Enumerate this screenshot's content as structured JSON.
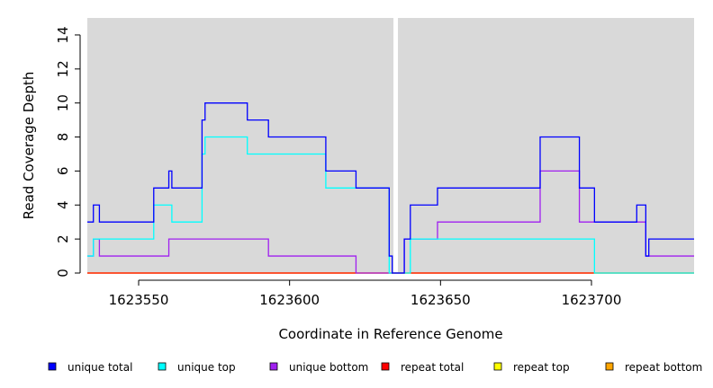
{
  "chart_data": {
    "type": "line",
    "step": true,
    "xlabel": "Coordinate in Reference Genome",
    "ylabel": "Read Coverage Depth",
    "xlim": [
      1623533,
      1623734
    ],
    "ylim": [
      0,
      15
    ],
    "x_ticks": [
      1623550,
      1623600,
      1623650,
      1623700
    ],
    "y_ticks": [
      0,
      2,
      4,
      6,
      8,
      10,
      12,
      14
    ],
    "gap_x": 1623635,
    "grid": false,
    "background_color": "#d9d9d9",
    "legend_position": "bottom",
    "series": [
      {
        "name": "unique total",
        "color": "#0000ff",
        "points": [
          [
            1623533,
            3
          ],
          [
            1623535,
            4
          ],
          [
            1623537,
            3
          ],
          [
            1623555,
            5
          ],
          [
            1623560,
            6
          ],
          [
            1623561,
            5
          ],
          [
            1623571,
            9
          ],
          [
            1623572,
            10
          ],
          [
            1623586,
            9
          ],
          [
            1623593,
            8
          ],
          [
            1623612,
            6
          ],
          [
            1623622,
            5
          ],
          [
            1623633,
            1
          ],
          [
            1623634,
            0
          ],
          [
            1623638,
            2
          ],
          [
            1623640,
            4
          ],
          [
            1623649,
            5
          ],
          [
            1623683,
            8
          ],
          [
            1623696,
            5
          ],
          [
            1623701,
            3
          ],
          [
            1623715,
            4
          ],
          [
            1623718,
            1
          ],
          [
            1623719,
            2
          ],
          [
            1623734,
            2
          ]
        ]
      },
      {
        "name": "unique top",
        "color": "#00ffff",
        "points": [
          [
            1623533,
            1
          ],
          [
            1623535,
            2
          ],
          [
            1623555,
            4
          ],
          [
            1623561,
            3
          ],
          [
            1623571,
            7
          ],
          [
            1623572,
            8
          ],
          [
            1623586,
            7
          ],
          [
            1623612,
            5
          ],
          [
            1623622,
            5
          ],
          [
            1623633,
            0
          ],
          [
            1623638,
            0
          ],
          [
            1623640,
            2
          ],
          [
            1623701,
            0
          ],
          [
            1623719,
            0
          ],
          [
            1623734,
            0
          ]
        ]
      },
      {
        "name": "unique bottom",
        "color": "#a020f0",
        "points": [
          [
            1623533,
            1
          ],
          [
            1623535,
            2
          ],
          [
            1623537,
            1
          ],
          [
            1623560,
            2
          ],
          [
            1623593,
            1
          ],
          [
            1623622,
            0
          ],
          [
            1623633,
            0
          ],
          [
            1623638,
            2
          ],
          [
            1623649,
            3
          ],
          [
            1623683,
            6
          ],
          [
            1623696,
            3
          ],
          [
            1623718,
            1
          ],
          [
            1623734,
            1
          ]
        ]
      },
      {
        "name": "repeat total",
        "color": "#ff0000",
        "points": [
          [
            1623533,
            0
          ],
          [
            1623734,
            0
          ]
        ]
      },
      {
        "name": "repeat top",
        "color": "#ffff00",
        "points": [
          [
            1623533,
            0
          ],
          [
            1623734,
            0
          ]
        ]
      },
      {
        "name": "repeat bottom",
        "color": "#ffa500",
        "points": [
          [
            1623533,
            0
          ],
          [
            1623734,
            0
          ]
        ]
      }
    ]
  }
}
